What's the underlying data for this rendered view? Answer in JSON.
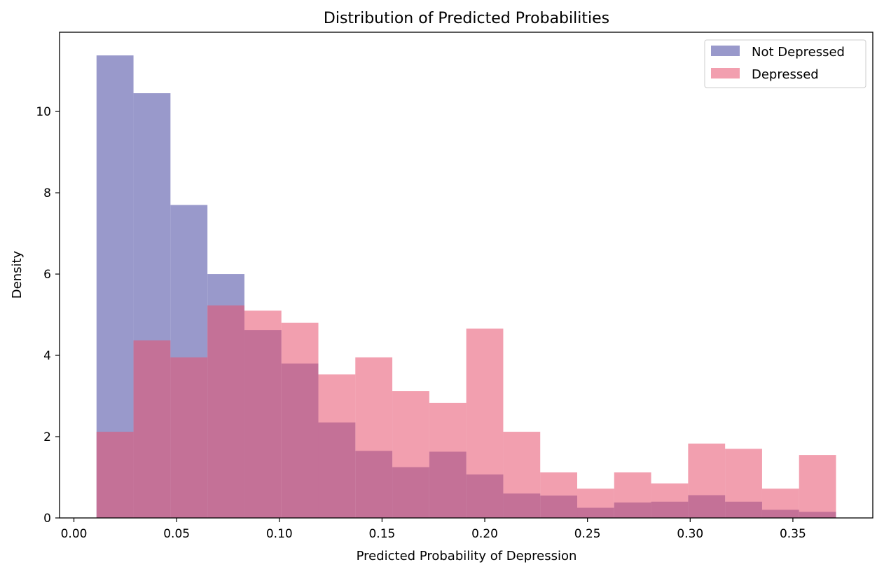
{
  "chart_data": {
    "type": "histogram",
    "title": "Distribution of Predicted Probabilities",
    "xlabel": "Predicted Probability of Depression",
    "ylabel": "Density",
    "xlim": [
      -0.007,
      0.3889
    ],
    "ylim": [
      0,
      11.95
    ],
    "xticks": [
      0.0,
      0.05,
      0.1,
      0.15,
      0.2,
      0.25,
      0.3,
      0.35
    ],
    "xtick_labels": [
      "0.00",
      "0.05",
      "0.10",
      "0.15",
      "0.20",
      "0.25",
      "0.30",
      "0.35"
    ],
    "yticks": [
      0,
      2,
      4,
      6,
      8,
      10
    ],
    "ytick_labels": [
      "0",
      "2",
      "4",
      "6",
      "8",
      "10"
    ],
    "bin_edges": [
      0.011,
      0.029,
      0.047,
      0.065,
      0.083,
      0.101,
      0.119,
      0.137,
      0.155,
      0.173,
      0.191,
      0.209,
      0.227,
      0.245,
      0.263,
      0.281,
      0.299,
      0.317,
      0.335,
      0.353,
      0.371
    ],
    "legend_position": "upper right",
    "grid": false,
    "series": [
      {
        "name": "Not Depressed",
        "color": "#9999cb",
        "alpha": 1,
        "values": [
          11.38,
          10.45,
          7.7,
          6.0,
          4.62,
          3.8,
          2.35,
          1.65,
          1.25,
          1.63,
          1.07,
          0.6,
          0.55,
          0.25,
          0.38,
          0.4,
          0.56,
          0.4,
          0.2,
          0.15
        ]
      },
      {
        "name": "Depressed",
        "color": "#e8506e",
        "alpha": 0.55,
        "values": [
          2.12,
          4.37,
          3.95,
          5.23,
          5.1,
          4.8,
          3.53,
          3.95,
          3.12,
          2.83,
          4.66,
          2.12,
          1.12,
          0.72,
          1.12,
          0.85,
          1.83,
          1.7,
          0.72,
          1.55
        ]
      }
    ]
  }
}
